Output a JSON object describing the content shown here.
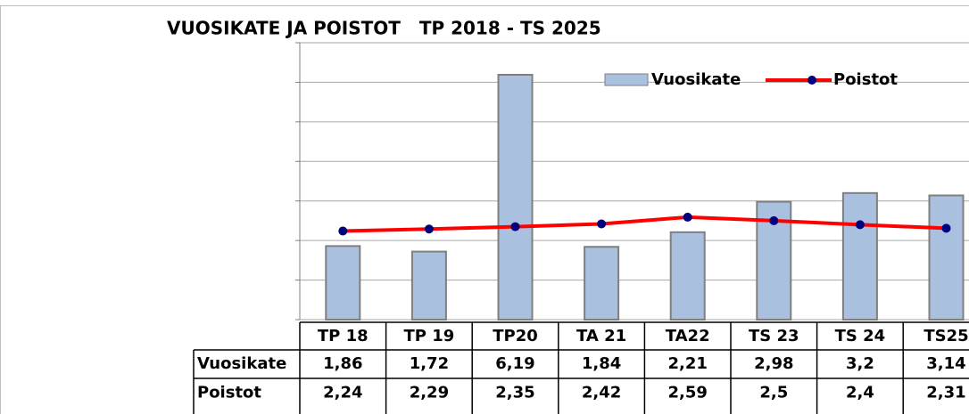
{
  "chart_data": {
    "type": "bar",
    "title": "VUOSIKATE JA POISTOT   TP 2018 - TS 2025",
    "categories": [
      "TP 18",
      "TP 19",
      "TP20",
      "TA 21",
      "TA22",
      "TS 23",
      "TS 24",
      "TS25"
    ],
    "series": [
      {
        "name": "Vuosikate",
        "type": "bar",
        "color": "#a9c0de",
        "values": [
          1.86,
          1.72,
          6.19,
          1.84,
          2.21,
          2.98,
          3.2,
          3.14
        ],
        "value_labels": [
          "1,86",
          "1,72",
          "6,19",
          "1,84",
          "2,21",
          "2,98",
          "3,2",
          "3,14"
        ]
      },
      {
        "name": "Poistot",
        "type": "line",
        "color": "#ff0000",
        "marker_color": "#00007f",
        "values": [
          2.24,
          2.29,
          2.35,
          2.42,
          2.59,
          2.5,
          2.4,
          2.31
        ],
        "value_labels": [
          "2,24",
          "2,29",
          "2,35",
          "2,42",
          "2,59",
          "2,5",
          "2,4",
          "2,31"
        ]
      }
    ],
    "ylim": [
      0,
      7
    ],
    "yticks": [
      0,
      1,
      2,
      3,
      4,
      5,
      6,
      7
    ],
    "grid": true,
    "legend": "top-right"
  }
}
